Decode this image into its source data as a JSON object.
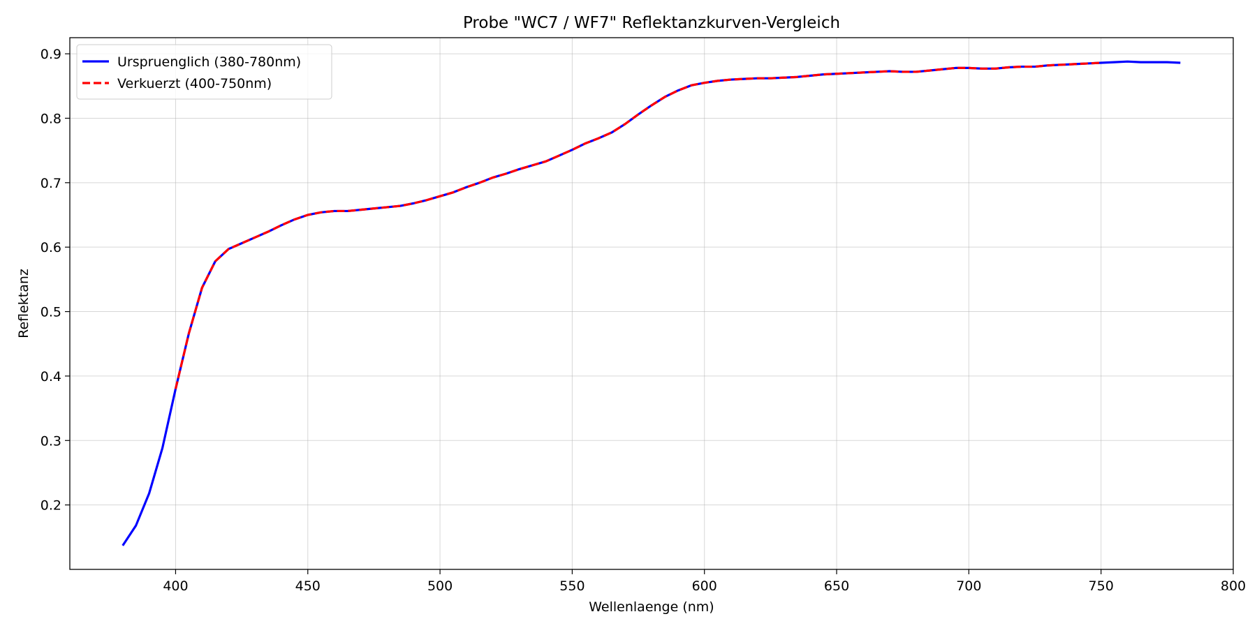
{
  "chart_data": {
    "type": "line",
    "title": "Probe \"WC7 / WF7\" Reflektanzkurven-Vergleich",
    "xlabel": "Wellenlaenge (nm)",
    "ylabel": "Reflektanz",
    "xlim": [
      360,
      800
    ],
    "ylim": [
      0.1,
      0.925
    ],
    "xticks": [
      400,
      450,
      500,
      550,
      600,
      650,
      700,
      750,
      800
    ],
    "yticks": [
      0.2,
      0.3,
      0.4,
      0.5,
      0.6,
      0.7,
      0.8,
      0.9
    ],
    "grid": true,
    "legend_position": "top-left",
    "series": [
      {
        "name": "Urspruenglich (380-780nm)",
        "color": "#0000ff",
        "style": "solid",
        "x": [
          380,
          385,
          390,
          395,
          400,
          405,
          410,
          415,
          420,
          425,
          430,
          435,
          440,
          445,
          450,
          455,
          460,
          465,
          470,
          475,
          480,
          485,
          490,
          495,
          500,
          505,
          510,
          515,
          520,
          525,
          530,
          535,
          540,
          545,
          550,
          555,
          560,
          565,
          570,
          575,
          580,
          585,
          590,
          595,
          600,
          605,
          610,
          615,
          620,
          625,
          630,
          635,
          640,
          645,
          650,
          655,
          660,
          665,
          670,
          675,
          680,
          685,
          690,
          695,
          700,
          705,
          710,
          715,
          720,
          725,
          730,
          735,
          740,
          745,
          750,
          755,
          760,
          765,
          770,
          775,
          780
        ],
        "values": [
          0.137,
          0.168,
          0.218,
          0.288,
          0.38,
          0.466,
          0.537,
          0.578,
          0.597,
          0.606,
          0.615,
          0.624,
          0.634,
          0.643,
          0.65,
          0.654,
          0.656,
          0.656,
          0.658,
          0.66,
          0.662,
          0.664,
          0.668,
          0.673,
          0.679,
          0.685,
          0.693,
          0.7,
          0.708,
          0.714,
          0.721,
          0.727,
          0.733,
          0.742,
          0.751,
          0.761,
          0.769,
          0.778,
          0.791,
          0.806,
          0.82,
          0.833,
          0.843,
          0.851,
          0.855,
          0.858,
          0.86,
          0.861,
          0.862,
          0.862,
          0.863,
          0.864,
          0.866,
          0.868,
          0.869,
          0.87,
          0.871,
          0.872,
          0.873,
          0.872,
          0.872,
          0.874,
          0.876,
          0.878,
          0.878,
          0.877,
          0.877,
          0.879,
          0.88,
          0.88,
          0.882,
          0.883,
          0.884,
          0.885,
          0.886,
          0.887,
          0.888,
          0.887,
          0.887,
          0.887,
          0.886
        ]
      },
      {
        "name": "Verkuerzt (400-750nm)",
        "color": "#ff0000",
        "style": "dashed",
        "x": [
          400,
          405,
          410,
          415,
          420,
          425,
          430,
          435,
          440,
          445,
          450,
          455,
          460,
          465,
          470,
          475,
          480,
          485,
          490,
          495,
          500,
          505,
          510,
          515,
          520,
          525,
          530,
          535,
          540,
          545,
          550,
          555,
          560,
          565,
          570,
          575,
          580,
          585,
          590,
          595,
          600,
          605,
          610,
          615,
          620,
          625,
          630,
          635,
          640,
          645,
          650,
          655,
          660,
          665,
          670,
          675,
          680,
          685,
          690,
          695,
          700,
          705,
          710,
          715,
          720,
          725,
          730,
          735,
          740,
          745,
          750
        ],
        "values": [
          0.38,
          0.466,
          0.537,
          0.578,
          0.597,
          0.606,
          0.615,
          0.624,
          0.634,
          0.643,
          0.65,
          0.654,
          0.656,
          0.656,
          0.658,
          0.66,
          0.662,
          0.664,
          0.668,
          0.673,
          0.679,
          0.685,
          0.693,
          0.7,
          0.708,
          0.714,
          0.721,
          0.727,
          0.733,
          0.742,
          0.751,
          0.761,
          0.769,
          0.778,
          0.791,
          0.806,
          0.82,
          0.833,
          0.843,
          0.851,
          0.855,
          0.858,
          0.86,
          0.861,
          0.862,
          0.862,
          0.863,
          0.864,
          0.866,
          0.868,
          0.869,
          0.87,
          0.871,
          0.872,
          0.873,
          0.872,
          0.872,
          0.874,
          0.876,
          0.878,
          0.878,
          0.877,
          0.877,
          0.879,
          0.88,
          0.88,
          0.882,
          0.883,
          0.884,
          0.885,
          0.886
        ]
      }
    ]
  }
}
